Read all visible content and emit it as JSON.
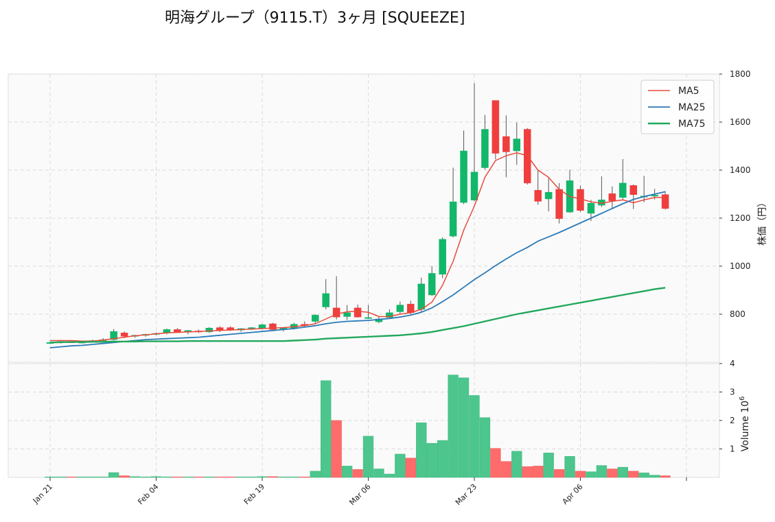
{
  "title": "明海グループ（9115.T）3ヶ月 [SQUEEZE]",
  "colors": {
    "up": "#12b76a",
    "down": "#f03e3e",
    "ma5": "#e8493a",
    "ma25": "#2a7ab8",
    "ma75": "#22a85a",
    "vol_up": "#4cc68d",
    "vol_down": "#ff6b6b"
  },
  "chart_data": [
    {
      "type": "candlestick",
      "ylabel": "株価（円）",
      "ylim": [
        600,
        1800
      ],
      "yticks": [
        800,
        1000,
        1200,
        1400,
        1600,
        1800
      ],
      "grid": true,
      "legend_position": "top-right",
      "x_ticks": [
        {
          "label": "Jan 21",
          "index": 0
        },
        {
          "label": "Feb 04",
          "index": 10
        },
        {
          "label": "Feb 19",
          "index": 20
        },
        {
          "label": "Mar 06",
          "index": 30
        },
        {
          "label": "Mar 23",
          "index": 40
        },
        {
          "label": "Apr 06",
          "index": 50
        },
        {
          "label": "",
          "index": 60
        }
      ],
      "candles": [
        [
          680,
          684,
          676,
          682
        ],
        [
          682,
          688,
          678,
          686
        ],
        [
          685,
          688,
          680,
          682
        ],
        [
          682,
          686,
          678,
          684
        ],
        [
          684,
          694,
          682,
          690
        ],
        [
          690,
          700,
          686,
          694
        ],
        [
          694,
          738,
          690,
          728
        ],
        [
          722,
          728,
          700,
          708
        ],
        [
          708,
          714,
          702,
          712
        ],
        [
          712,
          718,
          706,
          716
        ],
        [
          716,
          724,
          712,
          720
        ],
        [
          722,
          740,
          716,
          736
        ],
        [
          736,
          742,
          722,
          726
        ],
        [
          726,
          734,
          716,
          732
        ],
        [
          730,
          736,
          722,
          726
        ],
        [
          726,
          746,
          722,
          742
        ],
        [
          744,
          750,
          726,
          732
        ],
        [
          744,
          750,
          730,
          734
        ],
        [
          734,
          742,
          726,
          740
        ],
        [
          740,
          746,
          734,
          744
        ],
        [
          740,
          760,
          736,
          756
        ],
        [
          760,
          764,
          732,
          736
        ],
        [
          736,
          746,
          728,
          742
        ],
        [
          740,
          764,
          736,
          758
        ],
        [
          758,
          770,
          746,
          754
        ],
        [
          770,
          800,
          762,
          796
        ],
        [
          830,
          946,
          820,
          886
        ],
        [
          826,
          958,
          778,
          788
        ],
        [
          790,
          838,
          776,
          806
        ],
        [
          826,
          840,
          786,
          788
        ],
        [
          786,
          838,
          780,
          786
        ],
        [
          768,
          790,
          762,
          780
        ],
        [
          786,
          820,
          780,
          806
        ],
        [
          810,
          852,
          800,
          838
        ],
        [
          842,
          856,
          800,
          806
        ],
        [
          820,
          952,
          808,
          926
        ],
        [
          880,
          1000,
          876,
          970
        ],
        [
          966,
          1120,
          950,
          1112
        ],
        [
          1125,
          1410,
          1120,
          1268
        ],
        [
          1265,
          1565,
          1258,
          1480
        ],
        [
          1275,
          1762,
          1270,
          1392
        ],
        [
          1410,
          1630,
          1402,
          1570
        ],
        [
          1690,
          1690,
          1445,
          1470
        ],
        [
          1540,
          1628,
          1370,
          1476
        ],
        [
          1480,
          1598,
          1422,
          1530
        ],
        [
          1570,
          1575,
          1340,
          1346
        ],
        [
          1316,
          1400,
          1256,
          1270
        ],
        [
          1280,
          1366,
          1228,
          1308
        ],
        [
          1320,
          1346,
          1178,
          1198
        ],
        [
          1225,
          1402,
          1222,
          1356
        ],
        [
          1320,
          1336,
          1226,
          1232
        ],
        [
          1220,
          1276,
          1188,
          1262
        ],
        [
          1254,
          1374,
          1246,
          1276
        ],
        [
          1302,
          1332,
          1238,
          1272
        ],
        [
          1286,
          1446,
          1278,
          1346
        ],
        [
          1336,
          1340,
          1238,
          1298
        ],
        [
          1288,
          1376,
          1266,
          1292
        ],
        [
          1296,
          1322,
          1278,
          1296
        ],
        [
          1298,
          1312,
          1236,
          1240
        ]
      ],
      "series": [
        {
          "name": "MA5",
          "values": [
            690,
            690,
            690,
            688,
            688,
            692,
            698,
            704,
            710,
            714,
            718,
            722,
            724,
            726,
            728,
            730,
            732,
            734,
            736,
            738,
            740,
            742,
            744,
            748,
            752,
            760,
            780,
            800,
            810,
            812,
            808,
            790,
            790,
            800,
            806,
            820,
            850,
            920,
            1020,
            1150,
            1250,
            1370,
            1440,
            1460,
            1472,
            1460,
            1400,
            1370,
            1320,
            1290,
            1280,
            1268,
            1262,
            1270,
            1276,
            1264,
            1276,
            1286,
            1286
          ]
        },
        {
          "name": "MA25",
          "values": [
            660,
            664,
            668,
            670,
            674,
            678,
            682,
            686,
            690,
            694,
            696,
            698,
            700,
            702,
            704,
            708,
            712,
            716,
            720,
            724,
            728,
            732,
            736,
            740,
            746,
            752,
            760,
            766,
            770,
            772,
            774,
            778,
            782,
            788,
            796,
            808,
            826,
            852,
            880,
            912,
            944,
            972,
            1002,
            1030,
            1056,
            1078,
            1104,
            1122,
            1140,
            1160,
            1180,
            1200,
            1220,
            1240,
            1260,
            1278,
            1290,
            1300,
            1310
          ]
        },
        {
          "name": "MA75",
          "values": [
            682,
            683,
            684,
            684,
            685,
            685,
            686,
            686,
            686,
            687,
            687,
            687,
            687,
            688,
            688,
            688,
            688,
            688,
            688,
            688,
            688,
            688,
            688,
            690,
            692,
            694,
            698,
            700,
            702,
            704,
            706,
            708,
            710,
            712,
            716,
            720,
            726,
            734,
            742,
            750,
            760,
            770,
            780,
            790,
            800,
            808,
            816,
            824,
            832,
            840,
            848,
            856,
            864,
            872,
            880,
            888,
            896,
            904,
            910
          ]
        }
      ]
    },
    {
      "type": "bar",
      "ylabel": "Volume 10^6",
      "ylabel_main": "Volume",
      "ylabel_exp": "6",
      "ylim": [
        0,
        4
      ],
      "yticks": [
        1,
        2,
        3,
        4
      ],
      "unit": "millions",
      "values": [
        0.02,
        0.02,
        0.02,
        0.02,
        0.02,
        0.02,
        0.17,
        0.06,
        0.03,
        0.02,
        0.03,
        0.02,
        0.02,
        0.02,
        0.02,
        0.02,
        0.02,
        0.02,
        0.02,
        0.02,
        0.03,
        0.03,
        0.02,
        0.02,
        0.02,
        0.22,
        3.4,
        2.0,
        0.4,
        0.28,
        1.45,
        0.3,
        0.12,
        0.82,
        0.68,
        1.92,
        1.2,
        1.3,
        3.6,
        3.5,
        2.88,
        2.1,
        1.02,
        0.56,
        0.92,
        0.38,
        0.4,
        0.86,
        0.28,
        0.74,
        0.22,
        0.2,
        0.42,
        0.3,
        0.36,
        0.22,
        0.16,
        0.08,
        0.06
      ]
    }
  ]
}
